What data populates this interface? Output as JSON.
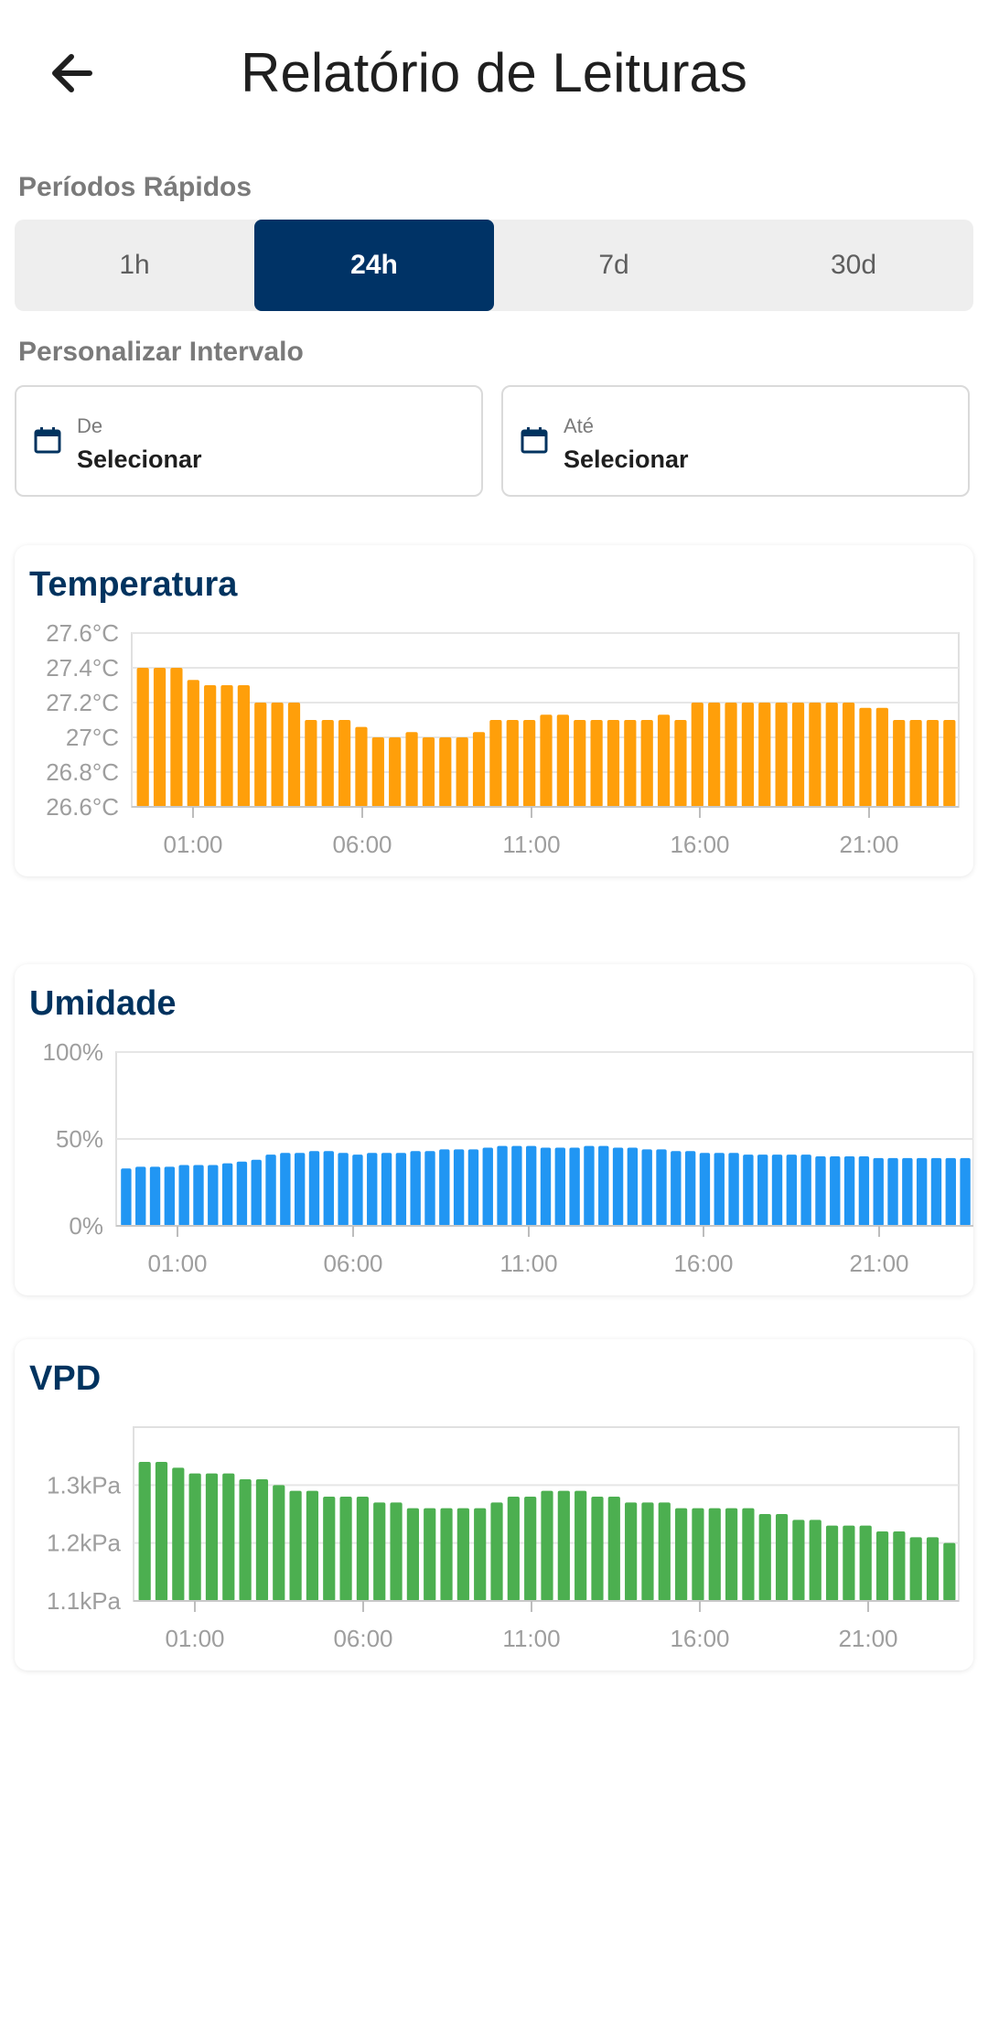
{
  "header": {
    "title": "Relatório de Leituras",
    "back_icon": "arrow-left-icon"
  },
  "quick_periods": {
    "label": "Períodos Rápidos",
    "options": [
      "1h",
      "24h",
      "7d",
      "30d"
    ],
    "selected": "24h"
  },
  "custom_interval": {
    "label": "Personalizar Intervalo",
    "from": {
      "label": "De",
      "value": "Selecionar",
      "icon": "calendar-icon"
    },
    "to": {
      "label": "Até",
      "value": "Selecionar",
      "icon": "calendar-icon"
    }
  },
  "colors": {
    "primary": "#003366",
    "temperature": "#FF9F0A",
    "humidity": "#2196F3",
    "vpd": "#4CAF50"
  },
  "chart_data": [
    {
      "type": "bar",
      "title": "Temperatura",
      "unit": "°C",
      "ylim": [
        26.6,
        27.6
      ],
      "yticks": [
        "27.6°C",
        "27.4°C",
        "27.2°C",
        "27°C",
        "26.8°C",
        "26.6°C"
      ],
      "xticks": [
        "01:00",
        "06:00",
        "11:00",
        "16:00",
        "21:00"
      ],
      "values": [
        27.4,
        27.4,
        27.4,
        27.33,
        27.3,
        27.3,
        27.3,
        27.2,
        27.2,
        27.2,
        27.1,
        27.1,
        27.1,
        27.06,
        27.0,
        27.0,
        27.03,
        27.0,
        27.0,
        27.0,
        27.03,
        27.1,
        27.1,
        27.1,
        27.13,
        27.13,
        27.1,
        27.1,
        27.1,
        27.1,
        27.1,
        27.13,
        27.1,
        27.2,
        27.2,
        27.2,
        27.2,
        27.2,
        27.2,
        27.2,
        27.2,
        27.2,
        27.2,
        27.17,
        27.17,
        27.1,
        27.1,
        27.1,
        27.1
      ],
      "color": "#FF9F0A"
    },
    {
      "type": "bar",
      "title": "Umidade",
      "unit": "%",
      "ylim": [
        0,
        100
      ],
      "yticks": [
        "100%",
        "50%",
        "0%"
      ],
      "xticks": [
        "01:00",
        "06:00",
        "11:00",
        "16:00",
        "21:00"
      ],
      "values": [
        33,
        34,
        34,
        34,
        35,
        35,
        35,
        36,
        37,
        38,
        41,
        42,
        42,
        43,
        43,
        42,
        41,
        42,
        42,
        42,
        43,
        43,
        44,
        44,
        44,
        45,
        46,
        46,
        46,
        45,
        45,
        45,
        46,
        46,
        45,
        45,
        44,
        44,
        43,
        43,
        42,
        42,
        42,
        41,
        41,
        41,
        41,
        41,
        40,
        40,
        40,
        40,
        39,
        39,
        39,
        39,
        39,
        39,
        39
      ],
      "color": "#2196F3"
    },
    {
      "type": "bar",
      "title": "VPD",
      "unit": "kPa",
      "ylim": [
        1.1,
        1.4
      ],
      "yticks": [
        "1.3kPa",
        "1.2kPa",
        "1.1kPa"
      ],
      "xticks": [
        "01:00",
        "06:00",
        "11:00",
        "16:00",
        "21:00"
      ],
      "values": [
        1.34,
        1.34,
        1.33,
        1.32,
        1.32,
        1.32,
        1.31,
        1.31,
        1.3,
        1.29,
        1.29,
        1.28,
        1.28,
        1.28,
        1.27,
        1.27,
        1.26,
        1.26,
        1.26,
        1.26,
        1.26,
        1.27,
        1.28,
        1.28,
        1.29,
        1.29,
        1.29,
        1.28,
        1.28,
        1.27,
        1.27,
        1.27,
        1.26,
        1.26,
        1.26,
        1.26,
        1.26,
        1.25,
        1.25,
        1.24,
        1.24,
        1.23,
        1.23,
        1.23,
        1.22,
        1.22,
        1.21,
        1.21,
        1.2
      ],
      "color": "#4CAF50"
    }
  ]
}
